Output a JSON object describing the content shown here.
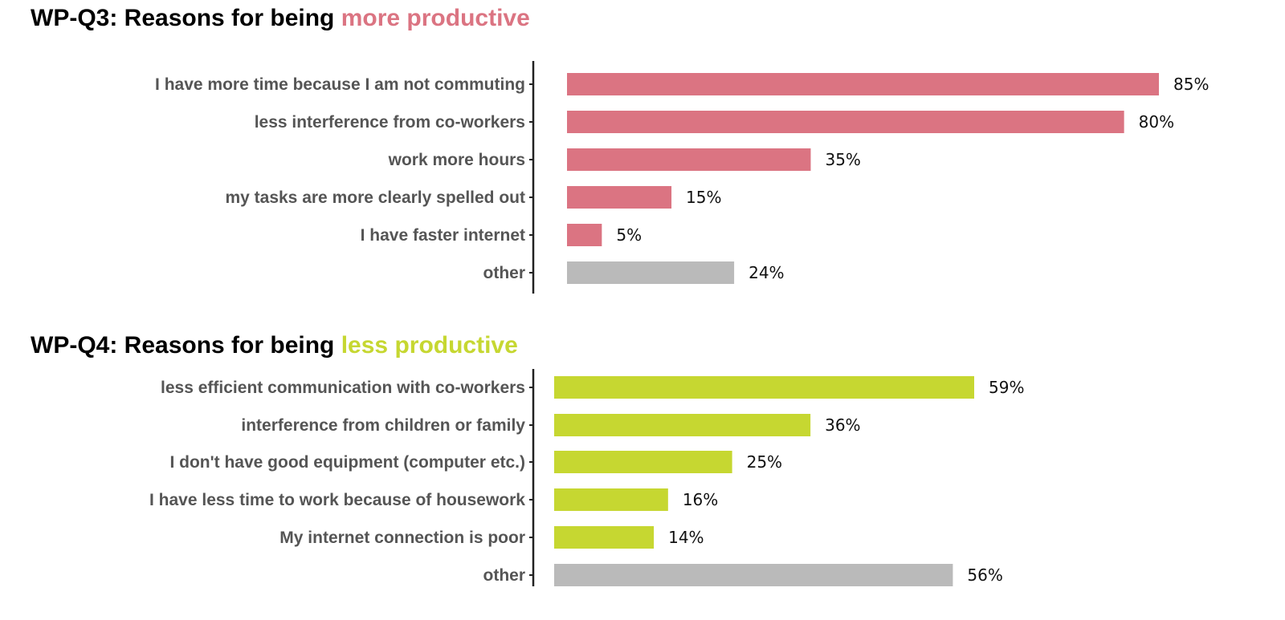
{
  "chart_data": [
    {
      "type": "bar",
      "orientation": "horizontal",
      "title_prefix": "WP-Q3: Reasons for being ",
      "title_highlight": "more productive",
      "highlight_color": "#DB7482",
      "other_color": "#BABABA",
      "categories": [
        "I have more time because I am not commuting",
        "less interference from co-workers",
        "work more hours",
        "my tasks are more clearly spelled out",
        "I have faster internet",
        "other"
      ],
      "values": [
        85,
        80,
        35,
        15,
        5,
        24
      ],
      "value_labels": [
        "85%",
        "80%",
        "35%",
        "15%",
        "5%",
        "24%"
      ],
      "xlim": [
        0,
        85
      ],
      "unit": "%"
    },
    {
      "type": "bar",
      "orientation": "horizontal",
      "title_prefix": "WP-Q4: Reasons for being ",
      "title_highlight": "less productive",
      "highlight_color": "#C6D731",
      "other_color": "#BABABA",
      "categories": [
        "less efficient communication with co-workers",
        "interference from children or family",
        "I don't have good equipment (computer etc.)",
        "I have less time to work because of housework",
        "My internet connection is poor",
        "other"
      ],
      "values": [
        59,
        36,
        25,
        16,
        14,
        56
      ],
      "value_labels": [
        "59%",
        "36%",
        "25%",
        "16%",
        "14%",
        "56%"
      ],
      "xlim": [
        0,
        59
      ],
      "unit": "%"
    }
  ]
}
